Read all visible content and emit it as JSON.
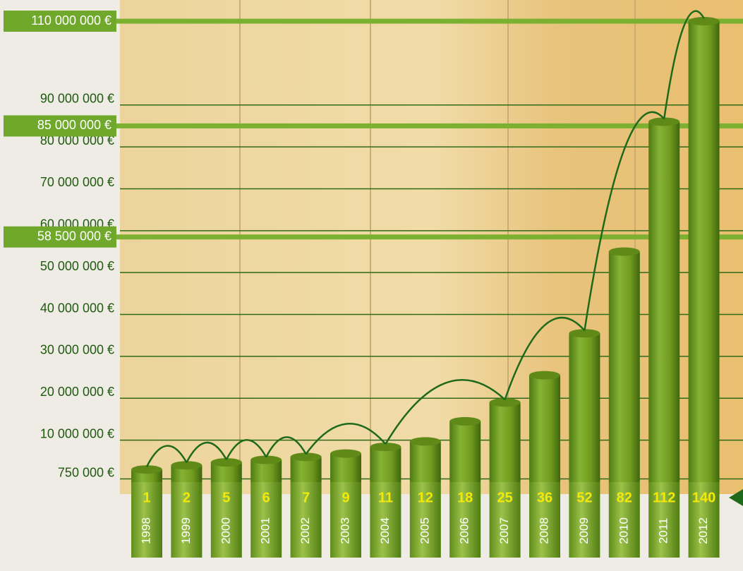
{
  "chart_data": {
    "type": "bar",
    "categories": [
      "1998",
      "1999",
      "2000",
      "2001",
      "2002",
      "2003",
      "2004",
      "2005",
      "2006",
      "2007",
      "2008",
      "2009",
      "2010",
      "2011",
      "2012"
    ],
    "values": [
      3000000,
      4000000,
      4700000,
      5300000,
      6000000,
      6800000,
      8400000,
      9700000,
      14500000,
      19000000,
      25500000,
      35500000,
      55000000,
      86000000,
      110000000
    ],
    "counts": [
      1,
      2,
      5,
      6,
      7,
      9,
      11,
      12,
      18,
      25,
      36,
      52,
      82,
      112,
      140
    ],
    "color": "#6f9a1e",
    "ylim": [
      0,
      110000000
    ],
    "yticks": [
      {
        "value": 750000,
        "label": "750 000 €"
      },
      {
        "value": 10000000,
        "label": "10 000 000 €"
      },
      {
        "value": 20000000,
        "label": "20 000 000 €"
      },
      {
        "value": 30000000,
        "label": "30 000 000 €"
      },
      {
        "value": 40000000,
        "label": "40 000 000 €"
      },
      {
        "value": 50000000,
        "label": "50 000 000 €"
      },
      {
        "value": 60000000,
        "label": "60 000 000 €"
      },
      {
        "value": 70000000,
        "label": "70 000 000 €"
      },
      {
        "value": 80000000,
        "label": "80 000 000 €"
      },
      {
        "value": 90000000,
        "label": "90 000 000 €"
      }
    ],
    "highlight_ticks": [
      {
        "value": 58500000,
        "label": "58 500 000 €"
      },
      {
        "value": 85000000,
        "label": "85 000 000 €"
      },
      {
        "value": 110000000,
        "label": "110 000 000 €"
      }
    ],
    "grid": true
  }
}
